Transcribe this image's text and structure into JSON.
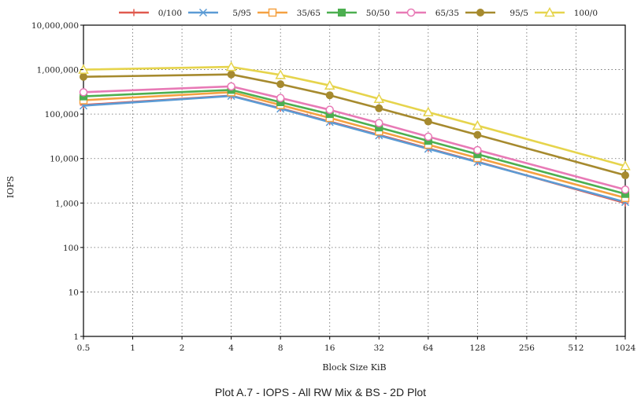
{
  "chart_data": {
    "type": "line",
    "title": "Plot A.7 - IOPS - All RW Mix & BS - 2D Plot",
    "xlabel": "Block Size KiB",
    "ylabel": "IOPS",
    "x_scale": "log2",
    "y_scale": "log10",
    "ylim": [
      1,
      10000000
    ],
    "grid": true,
    "legend_position": "top",
    "categories": [
      "0.5",
      "1",
      "2",
      "4",
      "8",
      "16",
      "32",
      "64",
      "128",
      "256",
      "512",
      "1024"
    ],
    "y_tick_labels": [
      "1",
      "10",
      "100",
      "1,000",
      "10,000",
      "100,000",
      "1,000,000",
      "10,000,000"
    ],
    "marked_points": [
      "0.5",
      "4",
      "8",
      "16",
      "32",
      "64",
      "128",
      "1024"
    ],
    "series": [
      {
        "name": "0/100",
        "color": "#e05a4f",
        "marker": "plus",
        "x": [
          0.5,
          4,
          8,
          16,
          32,
          64,
          128,
          1024
        ],
        "values": [
          160000,
          260000,
          135000,
          68000,
          34000,
          17000,
          8500,
          1000
        ]
      },
      {
        "name": "5/95",
        "color": "#5b9bd5",
        "marker": "x",
        "x": [
          0.5,
          4,
          8,
          16,
          32,
          64,
          128,
          1024
        ],
        "values": [
          155000,
          255000,
          132000,
          66000,
          33000,
          16500,
          8300,
          1050
        ]
      },
      {
        "name": "35/65",
        "color": "#f5a142",
        "marker": "square-open",
        "x": [
          0.5,
          4,
          8,
          16,
          32,
          64,
          128,
          1024
        ],
        "values": [
          205000,
          310000,
          160000,
          82000,
          41000,
          20500,
          10300,
          1300
        ]
      },
      {
        "name": "50/50",
        "color": "#4caf50",
        "marker": "square-filled",
        "x": [
          0.5,
          4,
          8,
          16,
          32,
          64,
          128,
          1024
        ],
        "values": [
          250000,
          350000,
          185000,
          100000,
          50000,
          25000,
          12500,
          1600
        ]
      },
      {
        "name": "65/35",
        "color": "#e87ab6",
        "marker": "circle-open",
        "x": [
          0.5,
          4,
          8,
          16,
          32,
          64,
          128,
          1024
        ],
        "values": [
          310000,
          420000,
          230000,
          125000,
          63000,
          31000,
          15500,
          2000
        ]
      },
      {
        "name": "95/5",
        "color": "#a68a2e",
        "marker": "circle-filled",
        "x": [
          0.5,
          4,
          8,
          16,
          32,
          64,
          128,
          1024
        ],
        "values": [
          690000,
          780000,
          470000,
          265000,
          135000,
          68000,
          34000,
          4200
        ]
      },
      {
        "name": "100/0",
        "color": "#e6d44c",
        "marker": "triangle-open",
        "x": [
          0.5,
          4,
          8,
          16,
          32,
          64,
          128,
          1024
        ],
        "values": [
          1000000,
          1150000,
          760000,
          440000,
          220000,
          110000,
          55000,
          6800
        ]
      }
    ]
  }
}
